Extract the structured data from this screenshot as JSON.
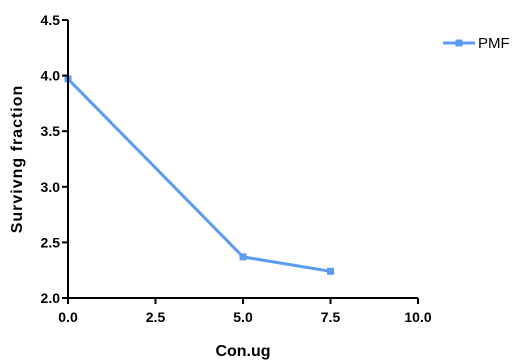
{
  "chart_data": {
    "type": "line",
    "title": "",
    "xlabel": "Con.ug",
    "ylabel": "Survivng fraction",
    "xlim": [
      0,
      10
    ],
    "ylim": [
      2.0,
      4.5
    ],
    "xticks": [
      0,
      2.5,
      5,
      7.5,
      10
    ],
    "yticks": [
      2.0,
      2.5,
      3.0,
      3.5,
      4.0,
      4.5
    ],
    "xtick_labels": [
      "0.0",
      "2.5",
      "5.0",
      "7.5",
      "10.0"
    ],
    "ytick_labels": [
      "2.0",
      "2.5",
      "3.0",
      "3.5",
      "4.0",
      "4.5"
    ],
    "grid": false,
    "legend_position": "top-right",
    "series": [
      {
        "name": "PMF",
        "color": "#5a9cf0",
        "marker": "square",
        "x": [
          0,
          5,
          7.5
        ],
        "y": [
          3.97,
          2.37,
          2.24
        ]
      }
    ]
  }
}
